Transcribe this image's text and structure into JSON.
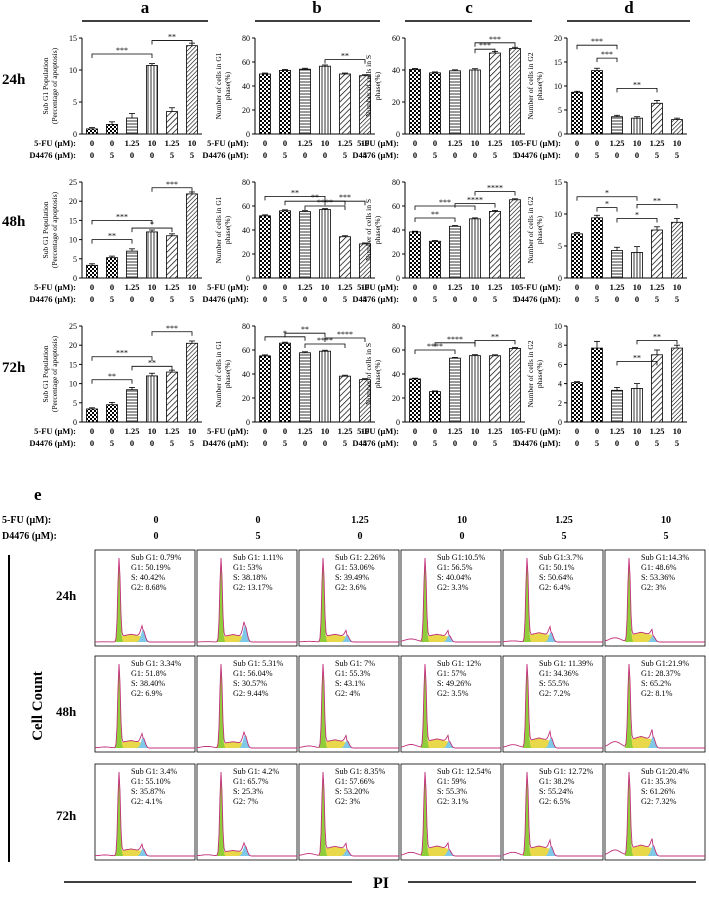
{
  "panel_letters": [
    "a",
    "b",
    "c",
    "d"
  ],
  "row_labels": [
    "24h",
    "48h",
    "72h"
  ],
  "treat": {
    "fu_label": "5-FU (μM):",
    "d_label": "D4476 (μM):",
    "fu": [
      "0",
      "0",
      "1.25",
      "10",
      "1.25",
      "10"
    ],
    "d": [
      "0",
      "5",
      "0",
      "0",
      "5",
      "5"
    ]
  },
  "colors": {
    "ink": "#000000",
    "g1_fill": "#8fce3a",
    "s_fill": "#e8d84a",
    "g2_fill": "#7fc8e8",
    "trace": "#c0307a"
  },
  "chart_data": [
    {
      "type": "bar",
      "panel": "a",
      "row": "24h",
      "ylabel": "Sub G1 Population\n(Percentage of apoptosis)",
      "ylim": [
        0,
        15
      ],
      "yticks": [
        0,
        5,
        10,
        15
      ],
      "values": [
        0.8,
        1.5,
        2.5,
        10.7,
        3.5,
        13.8
      ],
      "errors": [
        0.2,
        0.4,
        0.7,
        0.3,
        0.6,
        0.4
      ],
      "annotations": [
        {
          "from": 0,
          "to": 3,
          "level": 12.5,
          "text": "***"
        },
        {
          "from": 3,
          "to": 5,
          "level": 14.6,
          "text": "**"
        }
      ]
    },
    {
      "type": "bar",
      "panel": "b",
      "row": "24h",
      "ylabel": "Number of cells in G1\nphase(%)",
      "ylim": [
        0,
        80
      ],
      "yticks": [
        0,
        20,
        40,
        60,
        80
      ],
      "values": [
        50,
        53,
        54,
        56.5,
        50,
        48.6
      ],
      "errors": [
        0.8,
        0.8,
        0.8,
        1.0,
        0.8,
        0.8
      ],
      "annotations": [
        {
          "from": 3,
          "to": 5,
          "level": 62,
          "text": "**"
        }
      ]
    },
    {
      "type": "bar",
      "panel": "c",
      "row": "24h",
      "ylabel": "Number of cells in S\nphase(%)",
      "ylim": [
        0,
        60
      ],
      "yticks": [
        0,
        20,
        40,
        60
      ],
      "values": [
        40.4,
        38.2,
        39.5,
        40.0,
        50.6,
        53.4
      ],
      "errors": [
        0.6,
        0.6,
        0.6,
        0.8,
        1.0,
        0.8
      ],
      "annotations": [
        {
          "from": 3,
          "to": 4,
          "level": 53,
          "text": "***"
        },
        {
          "from": 3,
          "to": 5,
          "level": 57,
          "text": "***"
        }
      ]
    },
    {
      "type": "bar",
      "panel": "d",
      "row": "24h",
      "ylabel": "Number of cells in G2\nphase(%)",
      "ylim": [
        0,
        20
      ],
      "yticks": [
        0,
        5,
        10,
        15,
        20
      ],
      "values": [
        8.7,
        13.2,
        3.6,
        3.3,
        6.4,
        3.0
      ],
      "errors": [
        0.2,
        0.5,
        0.3,
        0.3,
        0.6,
        0.3
      ],
      "annotations": [
        {
          "from": 0,
          "to": 2,
          "level": 18.5,
          "text": "***"
        },
        {
          "from": 1,
          "to": 2,
          "level": 15.8,
          "text": "***"
        },
        {
          "from": 2,
          "to": 4,
          "level": 9.5,
          "text": "**"
        }
      ]
    },
    {
      "type": "bar",
      "panel": "a",
      "row": "48h",
      "ylabel": "Sub G1 Population\n(Percentage of apoptosis)",
      "ylim": [
        0,
        25
      ],
      "yticks": [
        0,
        5,
        10,
        15,
        20,
        25
      ],
      "values": [
        3.3,
        5.3,
        7.0,
        12.0,
        11.0,
        21.9
      ],
      "errors": [
        0.4,
        0.4,
        0.6,
        0.5,
        0.5,
        0.5
      ],
      "annotations": [
        {
          "from": 0,
          "to": 2,
          "level": 10,
          "text": "**"
        },
        {
          "from": 0,
          "to": 3,
          "level": 15,
          "text": "***"
        },
        {
          "from": 2,
          "to": 4,
          "level": 13,
          "text": "*"
        },
        {
          "from": 3,
          "to": 5,
          "level": 23.5,
          "text": "***"
        }
      ]
    },
    {
      "type": "bar",
      "panel": "b",
      "row": "48h",
      "ylabel": "Number of cells in G1\nphase(%)",
      "ylim": [
        0,
        80
      ],
      "yticks": [
        0,
        20,
        40,
        60,
        80
      ],
      "values": [
        51.8,
        56,
        55.3,
        57,
        34.4,
        28.4
      ],
      "errors": [
        0.8,
        0.8,
        0.8,
        0.8,
        0.8,
        0.8
      ],
      "annotations": [
        {
          "from": 0,
          "to": 3,
          "level": 68,
          "text": "**"
        },
        {
          "from": 1,
          "to": 4,
          "level": 64,
          "text": "**"
        },
        {
          "from": 2,
          "to": 4,
          "level": 60,
          "text": "****"
        },
        {
          "from": 3,
          "to": 5,
          "level": 64,
          "text": "***"
        }
      ]
    },
    {
      "type": "bar",
      "panel": "c",
      "row": "48h",
      "ylabel": "Number of cells in S\nphase(%)",
      "ylim": [
        0,
        80
      ],
      "yticks": [
        0,
        20,
        40,
        60,
        80
      ],
      "values": [
        38.4,
        30.6,
        43.1,
        49.3,
        55.5,
        65.2
      ],
      "errors": [
        0.6,
        0.6,
        0.6,
        0.8,
        0.8,
        0.8
      ],
      "annotations": [
        {
          "from": 0,
          "to": 2,
          "level": 50,
          "text": "**"
        },
        {
          "from": 0,
          "to": 3,
          "level": 60,
          "text": "***"
        },
        {
          "from": 2,
          "to": 4,
          "level": 62,
          "text": "****"
        },
        {
          "from": 3,
          "to": 5,
          "level": 72,
          "text": "****"
        }
      ]
    },
    {
      "type": "bar",
      "panel": "d",
      "row": "48h",
      "ylabel": "Number of cells in G2\nphase(%)",
      "ylim": [
        0,
        15
      ],
      "yticks": [
        0,
        5,
        10,
        15
      ],
      "values": [
        6.9,
        9.4,
        4.3,
        4.0,
        7.5,
        8.7
      ],
      "errors": [
        0.2,
        0.4,
        0.5,
        0.9,
        0.5,
        0.6
      ],
      "annotations": [
        {
          "from": 0,
          "to": 3,
          "level": 12.7,
          "text": "*"
        },
        {
          "from": 1,
          "to": 2,
          "level": 11.0,
          "text": "*"
        },
        {
          "from": 2,
          "to": 4,
          "level": 9.3,
          "text": "*"
        },
        {
          "from": 3,
          "to": 5,
          "level": 11.5,
          "text": "**"
        }
      ]
    },
    {
      "type": "bar",
      "panel": "a",
      "row": "72h",
      "ylabel": "Sub G1 Population\n(Percentage of apoptosis)",
      "ylim": [
        0,
        25
      ],
      "yticks": [
        0,
        5,
        10,
        15,
        20,
        25
      ],
      "values": [
        3.4,
        4.5,
        8.4,
        12.0,
        13.0,
        20.5
      ],
      "errors": [
        0.3,
        0.6,
        0.6,
        0.7,
        0.5,
        0.6
      ],
      "annotations": [
        {
          "from": 0,
          "to": 2,
          "level": 11,
          "text": "**"
        },
        {
          "from": 0,
          "to": 3,
          "level": 17,
          "text": "***"
        },
        {
          "from": 2,
          "to": 4,
          "level": 14.5,
          "text": "**"
        },
        {
          "from": 3,
          "to": 5,
          "level": 23.5,
          "text": "***"
        }
      ]
    },
    {
      "type": "bar",
      "panel": "b",
      "row": "72h",
      "ylabel": "Number of cells in G1\nphase(%)",
      "ylim": [
        0,
        80
      ],
      "yticks": [
        0,
        20,
        40,
        60,
        80
      ],
      "values": [
        55.1,
        65.7,
        57.7,
        59.0,
        38.2,
        35.3
      ],
      "errors": [
        0.8,
        0.8,
        0.8,
        0.8,
        0.8,
        0.8
      ],
      "annotations": [
        {
          "from": 0,
          "to": 2,
          "level": 71,
          "text": "*"
        },
        {
          "from": 1,
          "to": 3,
          "level": 74,
          "text": "**"
        },
        {
          "from": 2,
          "to": 4,
          "level": 65,
          "text": "****"
        },
        {
          "from": 3,
          "to": 5,
          "level": 70,
          "text": "****"
        }
      ]
    },
    {
      "type": "bar",
      "panel": "c",
      "row": "72h",
      "ylabel": "Number of cells in S\nphase(%)",
      "ylim": [
        0,
        80
      ],
      "yticks": [
        0,
        20,
        40,
        60,
        80
      ],
      "values": [
        35.9,
        25.3,
        53.2,
        55.3,
        55.2,
        61.3
      ],
      "errors": [
        0.6,
        0.6,
        0.6,
        0.8,
        0.8,
        0.8
      ],
      "annotations": [
        {
          "from": 0,
          "to": 2,
          "level": 60,
          "text": "****"
        },
        {
          "from": 1,
          "to": 3,
          "level": 66,
          "text": "****"
        },
        {
          "from": 3,
          "to": 5,
          "level": 68,
          "text": "**"
        }
      ]
    },
    {
      "type": "bar",
      "panel": "d",
      "row": "72h",
      "ylabel": "Number of cells in G2\nphase(%)",
      "ylim": [
        0,
        10
      ],
      "yticks": [
        0,
        2,
        4,
        6,
        8,
        10
      ],
      "values": [
        4.1,
        7.7,
        3.3,
        3.5,
        7.0,
        7.7
      ],
      "errors": [
        0.1,
        0.7,
        0.3,
        0.5,
        0.5,
        0.3
      ],
      "annotations": [
        {
          "from": 2,
          "to": 4,
          "level": 6.3,
          "text": "**"
        },
        {
          "from": 3,
          "to": 5,
          "level": 8.5,
          "text": "**"
        }
      ]
    }
  ],
  "flow": {
    "panel_letter": "e",
    "y_axis_label": "Cell Count",
    "x_axis_label": "PI",
    "rows": [
      "24h",
      "48h",
      "72h"
    ],
    "cells": [
      [
        {
          "lines": [
            "Sub G1: 0.79%",
            "G1: 50.19%",
            "S: 40.42%",
            "G2: 8.68%"
          ],
          "subg1": 0.79,
          "g1": 50.19,
          "s": 40.42,
          "g2": 8.68
        },
        {
          "lines": [
            "Sub G1: 1.11%",
            "G1: 53%",
            "S: 38.18%",
            "G2: 13.17%"
          ],
          "subg1": 1.11,
          "g1": 53,
          "s": 38.18,
          "g2": 13.17
        },
        {
          "lines": [
            "Sub G1: 2.26%",
            "G1: 53.06%",
            "S: 39.49%",
            "G2: 3.6%"
          ],
          "subg1": 2.26,
          "g1": 53.06,
          "s": 39.49,
          "g2": 3.6
        },
        {
          "lines": [
            "Sub G1:10.5%",
            "G1: 56.5%",
            "S: 40.04%",
            "G2: 3.3%"
          ],
          "subg1": 10.5,
          "g1": 56.5,
          "s": 40.04,
          "g2": 3.3
        },
        {
          "lines": [
            "Sub G1:3.7%",
            "G1: 50.1%",
            "S: 50.64%",
            "G2: 6.4%"
          ],
          "subg1": 3.7,
          "g1": 50.1,
          "s": 50.64,
          "g2": 6.4
        },
        {
          "lines": [
            "Sub G1:14.3%",
            "G1: 48.6%",
            "S: 53.36%",
            "G2: 3%"
          ],
          "subg1": 14.3,
          "g1": 48.6,
          "s": 53.36,
          "g2": 3
        }
      ],
      [
        {
          "lines": [
            "Sub G1: 3.34%",
            "G1: 51.8%",
            "S: 38.40%",
            "G2: 6.9%"
          ],
          "subg1": 3.34,
          "g1": 51.8,
          "s": 38.4,
          "g2": 6.9
        },
        {
          "lines": [
            "Sub G1: 5.31%",
            "G1: 56.04%",
            "S: 30.57%",
            "G2: 9.44%"
          ],
          "subg1": 5.31,
          "g1": 56.04,
          "s": 30.57,
          "g2": 9.44
        },
        {
          "lines": [
            "Sub G1: 7%",
            "G1: 55.3%",
            "S: 43.1%",
            "G2: 4%"
          ],
          "subg1": 7,
          "g1": 55.3,
          "s": 43.1,
          "g2": 4
        },
        {
          "lines": [
            "Sub G1: 12%",
            "G1: 57%",
            "S: 49.26%",
            "G2: 3.5%"
          ],
          "subg1": 12,
          "g1": 57,
          "s": 49.26,
          "g2": 3.5
        },
        {
          "lines": [
            "Sub G1: 11.39%",
            "G1: 34.36%",
            "S: 55.5%",
            "G2: 7.2%"
          ],
          "subg1": 11.39,
          "g1": 34.36,
          "s": 55.5,
          "g2": 7.2
        },
        {
          "lines": [
            "Sub G1:21.9%",
            "G1: 28.37%",
            "S: 65.2%",
            "G2: 8.1%"
          ],
          "subg1": 21.9,
          "g1": 28.37,
          "s": 65.2,
          "g2": 8.1
        }
      ],
      [
        {
          "lines": [
            "Sub G1: 3.4%",
            "G1: 55.10%",
            "S: 35.87%",
            "G2: 4.1%"
          ],
          "subg1": 3.4,
          "g1": 55.1,
          "s": 35.87,
          "g2": 4.1
        },
        {
          "lines": [
            "Sub G1: 4.2%",
            "G1: 65.7%",
            "S: 25.3%",
            "G2: 7%"
          ],
          "subg1": 4.2,
          "g1": 65.7,
          "s": 25.3,
          "g2": 7
        },
        {
          "lines": [
            "Sub G1: 8.35%",
            "G1: 57.66%",
            "S: 53.20%",
            "G2: 3%"
          ],
          "subg1": 8.35,
          "g1": 57.66,
          "s": 53.2,
          "g2": 3
        },
        {
          "lines": [
            "Sub G1: 12.54%",
            "G1: 59%",
            "S: 55.3%",
            "G2: 3.1%"
          ],
          "subg1": 12.54,
          "g1": 59,
          "s": 55.3,
          "g2": 3.1
        },
        {
          "lines": [
            "Sub G1: 12.72%",
            "G1: 38.2%",
            "S: 55.24%",
            "G2: 6.5%"
          ],
          "subg1": 12.72,
          "g1": 38.2,
          "s": 55.24,
          "g2": 6.5
        },
        {
          "lines": [
            "Sub G1:20.4%",
            "G1: 35.3%",
            "S: 61.26%",
            "G2: 7.32%"
          ],
          "subg1": 20.4,
          "g1": 35.3,
          "s": 61.26,
          "g2": 7.32
        }
      ]
    ]
  }
}
